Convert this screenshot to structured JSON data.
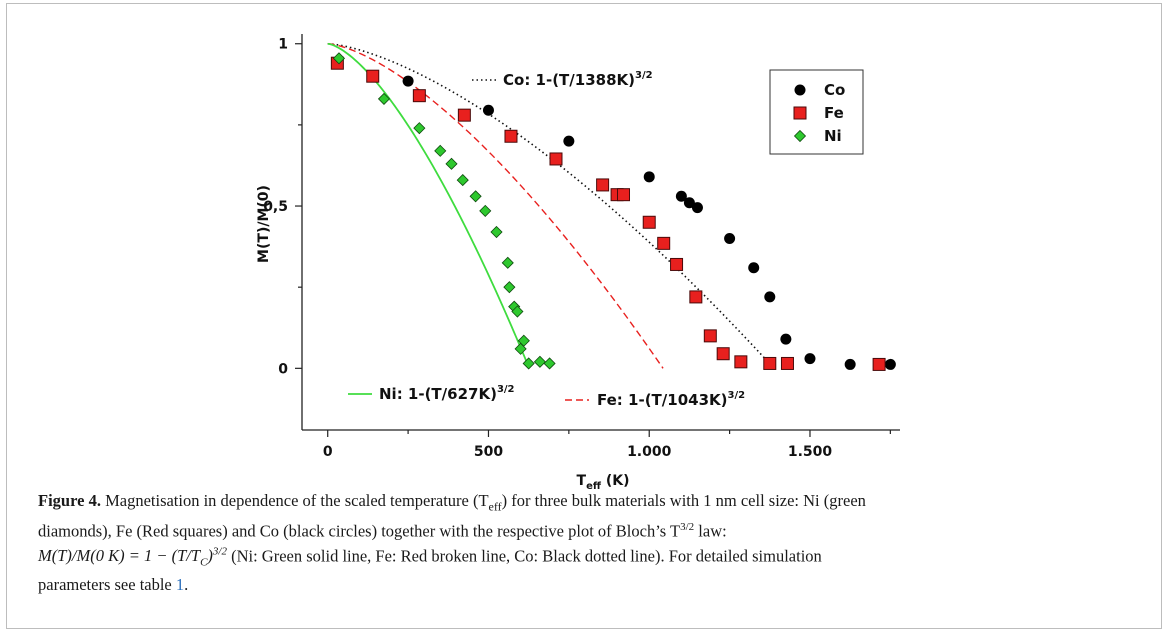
{
  "chart_data": {
    "type": "scatter",
    "xlabel": "T",
    "xlabel_sub": "eff",
    "xlabel_unit": "(K)",
    "ylabel": "M(T)/M(0)",
    "xlim": [
      -80,
      1780
    ],
    "ylim": [
      -0.19,
      1.03
    ],
    "x_ticks": [
      0,
      500,
      1000,
      1500
    ],
    "x_tick_labels": [
      "0",
      "500",
      "1.000",
      "1.500"
    ],
    "y_ticks": [
      0,
      0.5,
      1
    ],
    "y_tick_labels": [
      "0",
      "0,5",
      "1"
    ],
    "legend_position": "top-right",
    "series": [
      {
        "name": "Co",
        "marker": "circle",
        "color": "#000000",
        "x": [
          30,
          250,
          500,
          750,
          1000,
          1100,
          1125,
          1150,
          1250,
          1325,
          1375,
          1425,
          1500,
          1625,
          1750
        ],
        "y": [
          0.94,
          0.885,
          0.795,
          0.7,
          0.59,
          0.53,
          0.51,
          0.495,
          0.4,
          0.31,
          0.22,
          0.09,
          0.03,
          0.012,
          0.012
        ]
      },
      {
        "name": "Fe",
        "marker": "square",
        "color": "#e8201e",
        "x": [
          30,
          140,
          285,
          425,
          570,
          710,
          855,
          900,
          920,
          1000,
          1045,
          1085,
          1145,
          1190,
          1230,
          1285,
          1375,
          1430,
          1715
        ],
        "y": [
          0.94,
          0.9,
          0.84,
          0.78,
          0.715,
          0.645,
          0.565,
          0.535,
          0.535,
          0.45,
          0.385,
          0.32,
          0.22,
          0.1,
          0.045,
          0.02,
          0.015,
          0.015,
          0.012
        ]
      },
      {
        "name": "Ni",
        "marker": "diamond",
        "color": "#2ec82e",
        "x": [
          35,
          175,
          285,
          350,
          385,
          420,
          460,
          490,
          525,
          560,
          565,
          580,
          590,
          600,
          610,
          625,
          660,
          690
        ],
        "y": [
          0.955,
          0.83,
          0.74,
          0.67,
          0.63,
          0.58,
          0.53,
          0.485,
          0.42,
          0.325,
          0.25,
          0.19,
          0.175,
          0.06,
          0.085,
          0.015,
          0.02,
          0.015
        ]
      }
    ],
    "fits": [
      {
        "name": "Co",
        "tc": 1388,
        "label": "Co: 1-(T/1388K)",
        "exp": "3/2",
        "color": "#111111",
        "dash": "1.5,3",
        "width": 1.6
      },
      {
        "name": "Fe",
        "tc": 1043,
        "label": "Fe: 1-(T/1043K)",
        "exp": "3/2",
        "color": "#e8201e",
        "dash": "7,4",
        "width": 1.4
      },
      {
        "name": "Ni",
        "tc": 627,
        "label": "Ni: 1-(T/627K)",
        "exp": "3/2",
        "color": "#3fdc3f",
        "dash": "",
        "width": 1.8
      }
    ]
  },
  "caption": {
    "label": "Figure 4.",
    "line1_a": " Magnetisation in dependence of the scaled temperature (T",
    "line1_sub": "eff",
    "line1_b": ") for three bulk materials with 1 nm cell size: Ni (green",
    "line2_a": "diamonds), Fe (Red squares) and Co (black circles) together with the respective plot of Bloch’s T",
    "line2_sup": "3/2",
    "line2_b": " law:",
    "line3_formula": "M(T)/M(0 K) = 1 − (T/T",
    "line3_formula_sub": "C",
    "line3_formula_close": ")",
    "line3_formula_sup": "3/2",
    "line3_rest": " (Ni: Green solid line, Fe: Red broken line, Co: Black dotted line). For detailed simulation",
    "line4_a": "parameters see table ",
    "line4_ref": "1",
    "line4_b": "."
  }
}
